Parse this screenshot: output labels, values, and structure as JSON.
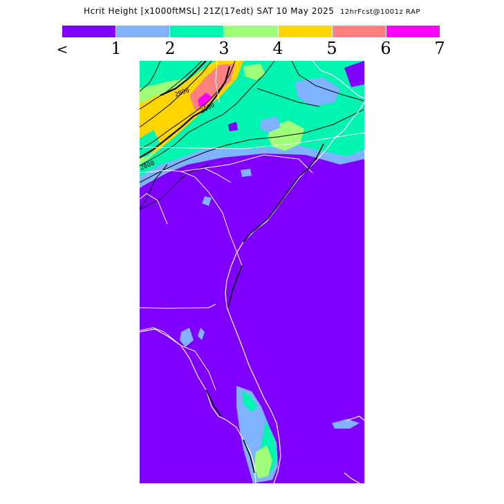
{
  "title": {
    "main": "Hcrit Height [x1000ftMSL] 21Z(17edt) SAT 10 May 2025",
    "run": "12hrFcst@1001z RAP"
  },
  "colorbar": {
    "swatches": [
      {
        "color": "#7f00ff"
      },
      {
        "color": "#80b3ff"
      },
      {
        "color": "#00f5b0"
      },
      {
        "color": "#a0ff78"
      },
      {
        "color": "#ffd500"
      },
      {
        "color": "#ff8080"
      },
      {
        "color": "#ff00ff"
      }
    ],
    "tick_labels": [
      "<",
      "1",
      "2",
      "3",
      "4",
      "5",
      "6",
      "7"
    ]
  },
  "map": {
    "background_color": "#7f00ff",
    "contour_labels": [
      "2000",
      "2000",
      "2000"
    ]
  }
}
